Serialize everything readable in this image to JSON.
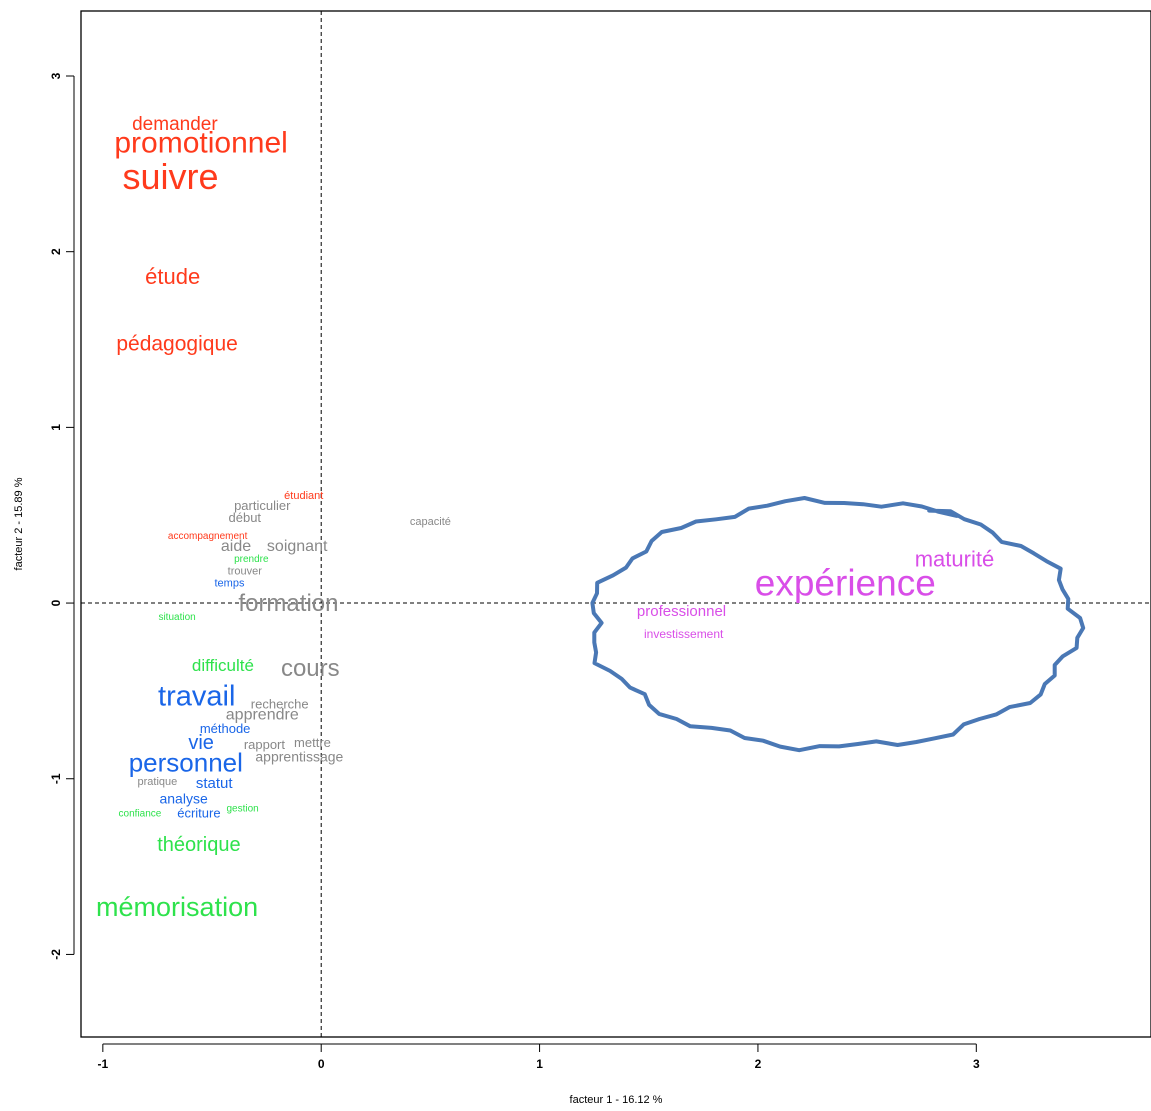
{
  "chart_data": {
    "type": "scatter",
    "title": "",
    "xlabel": "facteur  1 - 16.12 %",
    "ylabel": "facteur  2 - 15.89 %",
    "xlim": [
      -1.1,
      3.8
    ],
    "ylim": [
      -2.47,
      3.37
    ],
    "xticks": [
      -1,
      0,
      1,
      2,
      3
    ],
    "yticks": [
      -2,
      -1,
      0,
      1,
      2,
      3
    ],
    "reference_lines": {
      "x": 0,
      "y": 0,
      "style": "dashed"
    },
    "classes": [
      {
        "color": "#ff3a1c",
        "words": [
          {
            "label": "demander",
            "x": -0.67,
            "y": 2.72,
            "size": 19
          },
          {
            "label": "promotionnel",
            "x": -0.55,
            "y": 2.61,
            "size": 30
          },
          {
            "label": "suivre",
            "x": -0.69,
            "y": 2.41,
            "size": 36
          },
          {
            "label": "étude",
            "x": -0.68,
            "y": 1.85,
            "size": 22
          },
          {
            "label": "pédagogique",
            "x": -0.66,
            "y": 1.47,
            "size": 21
          },
          {
            "label": "étudiant",
            "x": -0.08,
            "y": 0.61,
            "size": 11
          },
          {
            "label": "accompagnement",
            "x": -0.52,
            "y": 0.38,
            "size": 10
          }
        ]
      },
      {
        "color": "#2ee24c",
        "words": [
          {
            "label": "prendre",
            "x": -0.32,
            "y": 0.25,
            "size": 10
          },
          {
            "label": "situation",
            "x": -0.66,
            "y": -0.08,
            "size": 10
          },
          {
            "label": "difficulté",
            "x": -0.45,
            "y": -0.36,
            "size": 17
          },
          {
            "label": "gestion",
            "x": -0.36,
            "y": -1.17,
            "size": 10
          },
          {
            "label": "confiance",
            "x": -0.83,
            "y": -1.2,
            "size": 10
          },
          {
            "label": "théorique",
            "x": -0.56,
            "y": -1.38,
            "size": 20
          },
          {
            "label": "mémorisation",
            "x": -0.66,
            "y": -1.74,
            "size": 27
          }
        ]
      },
      {
        "color": "#1a66e8",
        "words": [
          {
            "label": "temps",
            "x": -0.42,
            "y": 0.11,
            "size": 11
          },
          {
            "label": "travail",
            "x": -0.57,
            "y": -0.54,
            "size": 29
          },
          {
            "label": "méthode",
            "x": -0.44,
            "y": -0.72,
            "size": 13
          },
          {
            "label": "vie",
            "x": -0.55,
            "y": -0.8,
            "size": 20
          },
          {
            "label": "personnel",
            "x": -0.62,
            "y": -0.92,
            "size": 26
          },
          {
            "label": "statut",
            "x": -0.49,
            "y": -1.03,
            "size": 15
          },
          {
            "label": "analyse",
            "x": -0.63,
            "y": -1.12,
            "size": 14
          },
          {
            "label": "écriture",
            "x": -0.56,
            "y": -1.2,
            "size": 13
          }
        ]
      },
      {
        "color": "#888888",
        "words": [
          {
            "label": "capacité",
            "x": 0.5,
            "y": 0.46,
            "size": 11
          },
          {
            "label": "particulier",
            "x": -0.27,
            "y": 0.55,
            "size": 13
          },
          {
            "label": "début",
            "x": -0.35,
            "y": 0.48,
            "size": 13
          },
          {
            "label": "aide",
            "x": -0.39,
            "y": 0.32,
            "size": 16
          },
          {
            "label": "soignant",
            "x": -0.11,
            "y": 0.32,
            "size": 16
          },
          {
            "label": "trouver",
            "x": -0.35,
            "y": 0.18,
            "size": 11
          },
          {
            "label": "formation",
            "x": -0.15,
            "y": -0.01,
            "size": 24
          },
          {
            "label": "cours",
            "x": -0.05,
            "y": -0.38,
            "size": 24
          },
          {
            "label": "recherche",
            "x": -0.19,
            "y": -0.58,
            "size": 13
          },
          {
            "label": "apprendre",
            "x": -0.27,
            "y": -0.64,
            "size": 16
          },
          {
            "label": "rapport",
            "x": -0.26,
            "y": -0.81,
            "size": 13
          },
          {
            "label": "mettre",
            "x": -0.04,
            "y": -0.8,
            "size": 13
          },
          {
            "label": "apprentissage",
            "x": -0.1,
            "y": -0.88,
            "size": 14
          },
          {
            "label": "pratique",
            "x": -0.75,
            "y": -1.02,
            "size": 11
          }
        ]
      },
      {
        "color": "#d94ee8",
        "words": [
          {
            "label": "maturité",
            "x": 2.9,
            "y": 0.24,
            "size": 22
          },
          {
            "label": "expérience",
            "x": 2.4,
            "y": 0.1,
            "size": 37
          },
          {
            "label": "professionnel",
            "x": 1.65,
            "y": -0.05,
            "size": 15
          },
          {
            "label": "investissement",
            "x": 1.66,
            "y": -0.18,
            "size": 12
          }
        ]
      }
    ],
    "annotation": {
      "type": "hand-drawn-ellipse",
      "color": "#4a78b5",
      "center": [
        2.35,
        -0.12
      ],
      "rx": 1.11,
      "ry": 0.7
    }
  }
}
